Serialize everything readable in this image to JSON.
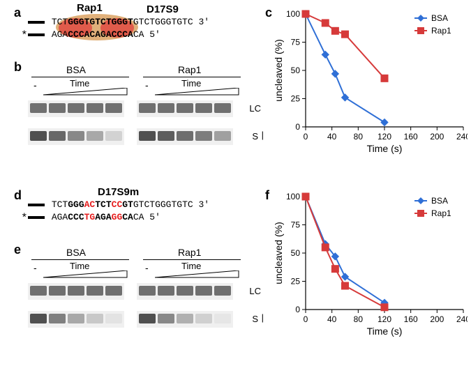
{
  "panel_a": {
    "label": "a",
    "rap1_label": "Rap1",
    "seq_name": "D17S9",
    "top_pre": "TCT",
    "top_core": "GGGTGTCTGGGT",
    "top_post": "GTCTGGGTGTC",
    "top_prime": " 3'",
    "bot_pre": "AGA",
    "bot_core": "CCCACAGACCCA",
    "bot_post": "CA",
    "bot_prime": " 5'",
    "oval_outer_color": "#e0b07a",
    "oval_inner_color": "#e05b4b"
  },
  "panel_b": {
    "label": "b",
    "cond_left": "BSA",
    "cond_right": "Rap1",
    "time_label": "Time",
    "ann_lc": "LC",
    "ann_s": "S",
    "band_color_lc": "#6f6f6f",
    "bg_color": "#eeeeee",
    "left_s_opacities": [
      1.0,
      0.85,
      0.65,
      0.45,
      0.18
    ],
    "right_s_opacities": [
      1.0,
      0.92,
      0.82,
      0.72,
      0.5
    ]
  },
  "panel_c": {
    "label": "c",
    "ylabel": "uncleaved (%)",
    "xlabel": "Time (s)",
    "xlim": [
      0,
      240
    ],
    "xtick_step": 40,
    "ylim": [
      0,
      100
    ],
    "ytick_step": 25,
    "bsa": {
      "x": [
        0,
        30,
        45,
        60,
        120
      ],
      "y": [
        100,
        64,
        47,
        26,
        4
      ],
      "color": "#2f6fd6",
      "marker": "diamond",
      "label": "BSA"
    },
    "rap1": {
      "x": [
        0,
        30,
        45,
        60,
        120
      ],
      "y": [
        100,
        92,
        85,
        82,
        43
      ],
      "color": "#d63a3a",
      "marker": "square",
      "label": "Rap1"
    }
  },
  "panel_d": {
    "label": "d",
    "seq_name": "D17S9m",
    "top_pre": "TCT",
    "top_seg1": "GGG",
    "top_mut1": "AC",
    "top_seg2": "TCT",
    "top_mut2": "CC",
    "top_seg3": "GT",
    "top_post": "GTCTGGGTGTC",
    "top_prime": " 3'",
    "bot_pre": "AGA",
    "bot_seg1": "CCC",
    "bot_mut1": "TG",
    "bot_seg2": "AGA",
    "bot_mut2": "GG",
    "bot_seg3": "CA",
    "bot_post": "CA",
    "bot_prime": " 5'",
    "mut_color": "#e62020"
  },
  "panel_e": {
    "label": "e",
    "cond_left": "BSA",
    "cond_right": "Rap1",
    "time_label": "Time",
    "ann_lc": "LC",
    "ann_s": "S",
    "left_s_opacities": [
      1.0,
      0.7,
      0.45,
      0.25,
      0.08
    ],
    "right_s_opacities": [
      1.0,
      0.65,
      0.4,
      0.2,
      0.06
    ]
  },
  "panel_f": {
    "label": "f",
    "ylabel": "uncleaved (%)",
    "xlabel": "Time (s)",
    "xlim": [
      0,
      240
    ],
    "xtick_step": 40,
    "ylim": [
      0,
      100
    ],
    "ytick_step": 25,
    "bsa": {
      "x": [
        0,
        30,
        45,
        60,
        120
      ],
      "y": [
        100,
        58,
        47,
        29,
        6
      ],
      "color": "#2f6fd6",
      "marker": "diamond",
      "label": "BSA"
    },
    "rap1": {
      "x": [
        0,
        30,
        45,
        60,
        120
      ],
      "y": [
        100,
        55,
        36,
        21,
        2
      ],
      "color": "#d63a3a",
      "marker": "square",
      "label": "Rap1"
    }
  }
}
